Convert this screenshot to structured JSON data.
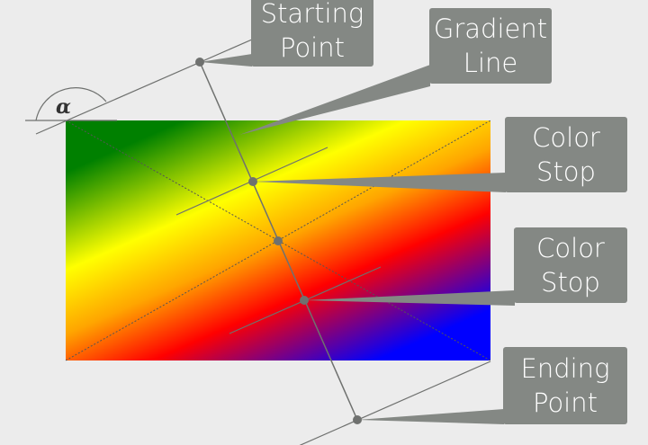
{
  "labels": {
    "starting_point": [
      "Starting",
      "Point"
    ],
    "gradient_line": [
      "Gradient",
      "Line"
    ],
    "color_stop_1": [
      "Color",
      "Stop"
    ],
    "color_stop_2": [
      "Color",
      "Stop"
    ],
    "ending_point": [
      "Ending",
      "Point"
    ],
    "angle": "α"
  },
  "colors": {
    "gradient_stops": [
      "#008000",
      "#ffff00",
      "#ffa500",
      "#ff0000",
      "#0000ff"
    ],
    "callout_fill": "#848884",
    "line": "#6f716f"
  }
}
